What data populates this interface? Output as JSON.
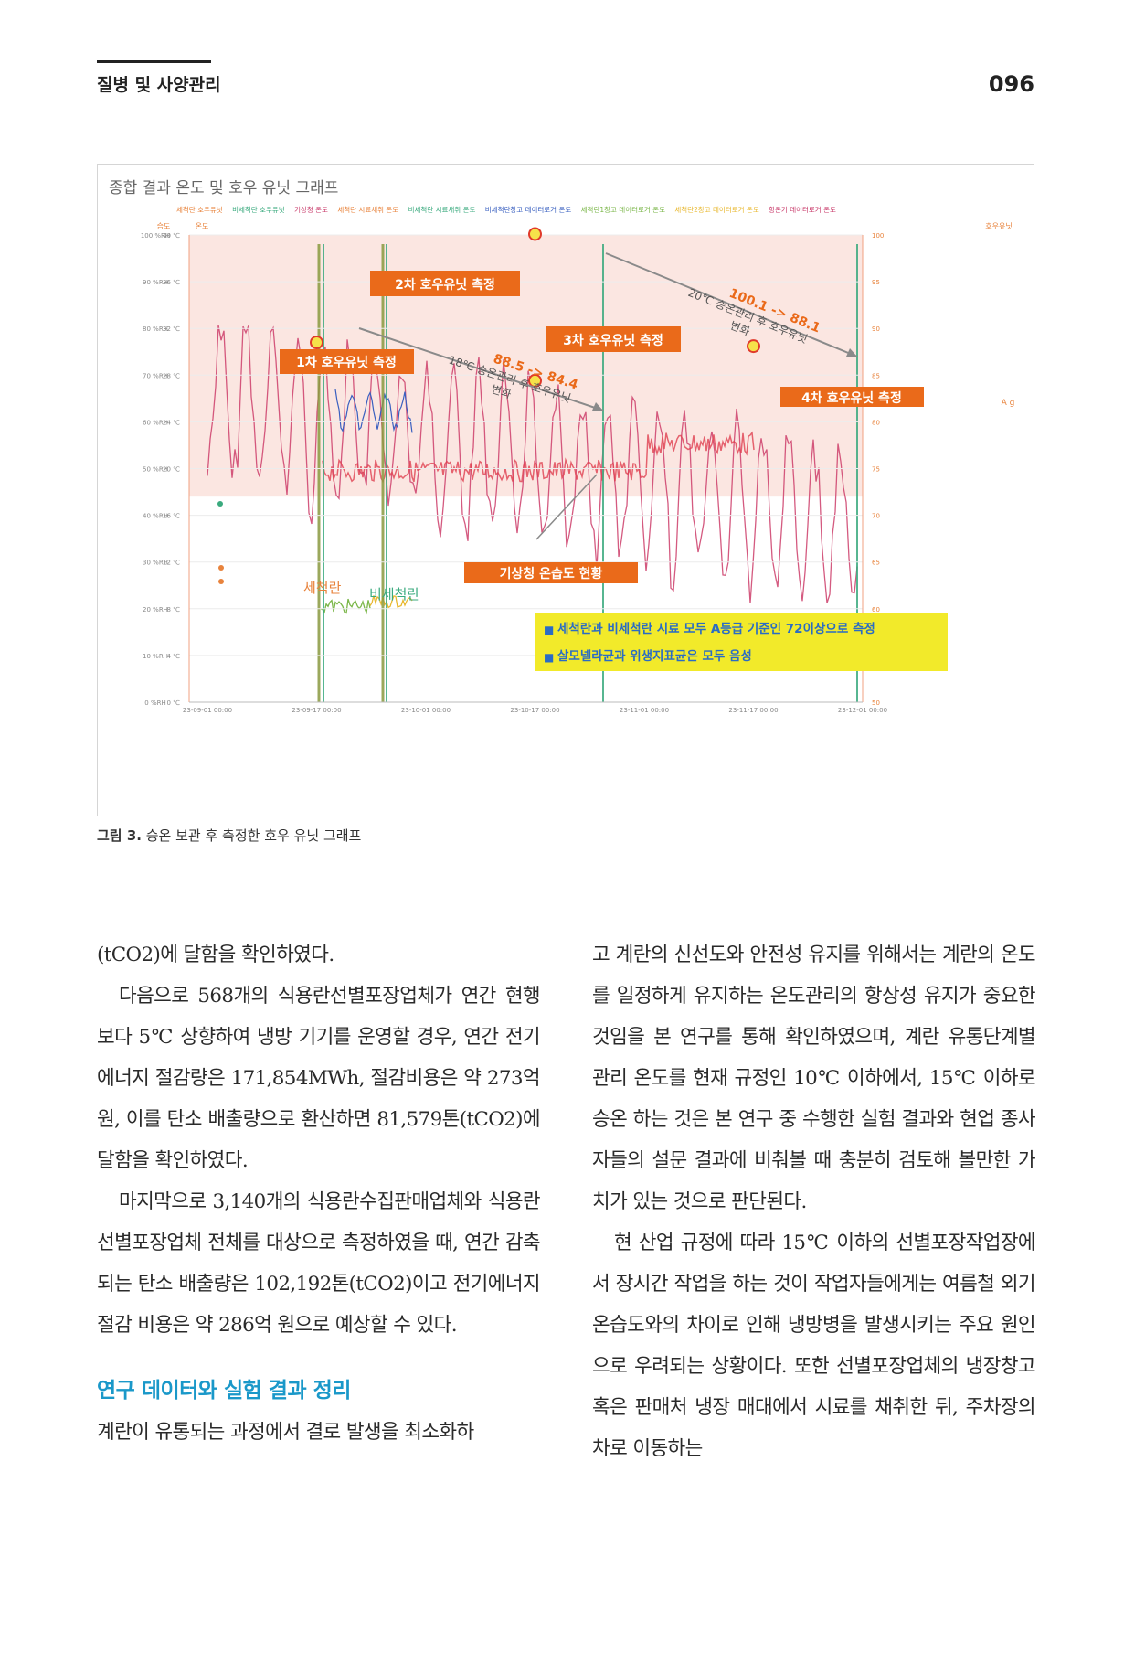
{
  "header": {
    "section": "질병 및 사양관리",
    "page_number": "096"
  },
  "figure": {
    "title": "종합 결과 온도 및 호우 유닛 그래프",
    "legend": [
      "세척란 호우유닛",
      "비세척란 호우유닛",
      "기상청 온도",
      "세척란 시료채취 온도",
      "비세척란 시료채취 온도",
      "비세척란창고 데이터로거 온도",
      "세척란1창고 데이터로거 온도",
      "세척란2창고 데이터로거 온도",
      "항온기 데이터로거 온도"
    ],
    "left_axis_title_1": "습도",
    "left_axis_title_2": "온도",
    "right_axis_title": "호우유닛",
    "right_axis_unit": "A g",
    "caption_bold": "그림 3.",
    "caption_text": " 승온 보관 후 측정한 호우 유닛 그래프"
  },
  "chart_data": {
    "type": "line",
    "x_ticks": [
      "23-09-01 00:00",
      "23-09-17 00:00",
      "23-10-01 00:00",
      "23-10-17 00:00",
      "23-11-01 00:00",
      "23-11-17 00:00",
      "23-12-01 00:00"
    ],
    "y_left_humidity_ticks": [
      "100 %RH",
      "90 %RH",
      "80 %RH",
      "70 %RH",
      "60 %RH",
      "50 %RH",
      "40 %RH",
      "30 %RH",
      "20 %RH",
      "10 %RH",
      "0 %RH"
    ],
    "y_left_temp_ticks": [
      "40 ℃",
      "36 ℃",
      "32 ℃",
      "28 ℃",
      "24 ℃",
      "20 ℃",
      "16 ℃",
      "12 ℃",
      "8 ℃",
      "4 ℃",
      "0 ℃"
    ],
    "y_right_ticks": [
      "100",
      "95",
      "90",
      "85",
      "80",
      "75",
      "70",
      "65",
      "60",
      "55",
      "50"
    ],
    "y_right_range": [
      50,
      100
    ],
    "haugh_unit_points": [
      {
        "x": "23-09-17 00:00",
        "y": 88.5
      },
      {
        "x": "23-10-17 00:00",
        "y": 84.4
      },
      {
        "x": "23-10-17 00:00",
        "y": 100.1
      },
      {
        "x": "23-11-17 00:00",
        "y": 88.1
      }
    ],
    "annotations": {
      "m1": "1차 호우유닛 측정",
      "m2": "2차 호우유닛 측정",
      "m3": "3차 호우유닛 측정",
      "m4": "4차 호우유닛 측정",
      "weather": "기상청 온습도 현황",
      "change1_value": "88.5 -> 84.4",
      "change1_desc1": "18℃ 승온관리 후 호우유닛",
      "change1_desc2": "변화",
      "change2_value": "100.1 -> 88.1",
      "change2_desc1": "20℃ 승온관리 후 호우유닛",
      "change2_desc2": "변화",
      "washed": "세척란",
      "unwashed": "비세척란",
      "note1": "세척란과 비세척란 시료 모두 A등급 기준인 72이상으로 측정",
      "note2": "살모넬라균과 위생지표균은 모두 음성"
    }
  },
  "body": {
    "left": {
      "p1": "(tCO2)에 달함을 확인하였다.",
      "p2": "다음으로 568개의 식용란선별포장업체가 연간 현행보다 5℃ 상향하여 냉방 기기를 운영할 경우, 연간 전기에너지 절감량은 171,854MWh, 절감비용은 약 273억 원, 이를 탄소 배출량으로 환산하면 81,579톤(tCO2)에 달함을 확인하였다.",
      "p3": "마지막으로 3,140개의 식용란수집판매업체와 식용란선별포장업체 전체를 대상으로 측정하였을 때, 연간 감축되는 탄소 배출량은 102,192톤(tCO2)이고 전기에너지 절감 비용은 약 286억 원으로 예상할 수 있다.",
      "heading": "연구 데이터와 실험 결과 정리",
      "p4": "계란이 유통되는 과정에서 결로 발생을 최소화하"
    },
    "right": {
      "p1": "고 계란의 신선도와 안전성 유지를 위해서는 계란의 온도를 일정하게 유지하는 온도관리의 항상성 유지가 중요한 것임을 본 연구를 통해 확인하였으며, 계란 유통단계별 관리 온도를 현재 규정인 10℃ 이하에서, 15℃ 이하로 승온 하는 것은 본 연구 중 수행한 실험 결과와 현업 종사자들의 설문 결과에 비춰볼 때 충분히 검토해 볼만한 가치가 있는 것으로 판단된다.",
      "p2": "현 산업 규정에 따라 15℃ 이하의 선별포장작업장에서 장시간 작업을 하는 것이 작업자들에게는 여름철 외기 온습도와의 차이로 인해 냉방병을 발생시키는 주요 원인으로 우려되는 상황이다. 또한 선별포장업체의 냉장창고 혹은 판매처 냉장 매대에서 시료를 채취한 뒤, 주차장의 차로 이동하는"
    }
  }
}
